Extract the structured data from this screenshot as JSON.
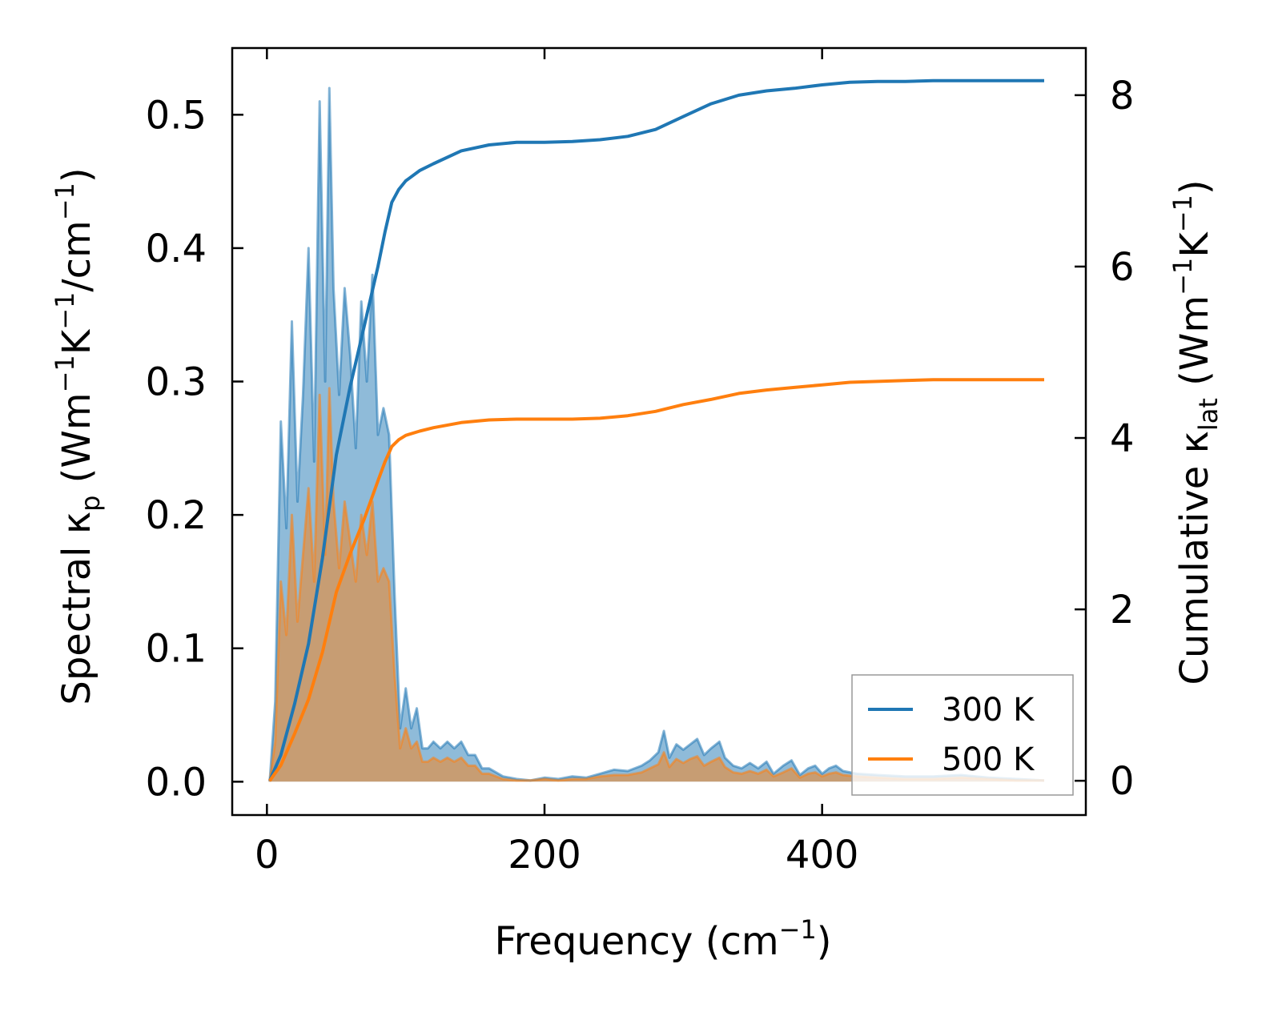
{
  "chart_data": {
    "type": "area+line (dual axis)",
    "xlabel": "Frequency (cm⁻¹)",
    "ylabel_left": "Spectral κₚ (Wm⁻¹K⁻¹/cm⁻¹)",
    "ylabel_right": "Cumulative κₗₐₜ (Wm⁻¹K⁻¹)",
    "xlim": [
      -25,
      590
    ],
    "ylim_left": [
      -0.025,
      0.55
    ],
    "ylim_right": [
      -0.4,
      8.55
    ],
    "x_ticks": [
      0,
      200,
      400
    ],
    "y_left_ticks": [
      0.0,
      0.1,
      0.2,
      0.3,
      0.4,
      0.5
    ],
    "y_right_ticks": [
      0,
      2,
      4,
      6,
      8
    ],
    "legend": {
      "position": "lower-right",
      "entries": [
        "300 K",
        "500 K"
      ]
    },
    "colors": {
      "300 K": "#1f77b4",
      "500 K": "#ff7f0e",
      "fill_300": "#1f77b4",
      "fill_500": "#ff7f0e"
    },
    "spectral": [
      {
        "name": "300 K",
        "points": [
          [
            2,
            0
          ],
          [
            6,
            0.06
          ],
          [
            10,
            0.27
          ],
          [
            14,
            0.19
          ],
          [
            18,
            0.345
          ],
          [
            22,
            0.21
          ],
          [
            26,
            0.29
          ],
          [
            30,
            0.4
          ],
          [
            34,
            0.24
          ],
          [
            38,
            0.51
          ],
          [
            42,
            0.3
          ],
          [
            45,
            0.52
          ],
          [
            48,
            0.37
          ],
          [
            52,
            0.29
          ],
          [
            56,
            0.37
          ],
          [
            60,
            0.32
          ],
          [
            64,
            0.25
          ],
          [
            68,
            0.36
          ],
          [
            72,
            0.3
          ],
          [
            76,
            0.38
          ],
          [
            80,
            0.26
          ],
          [
            84,
            0.28
          ],
          [
            88,
            0.26
          ],
          [
            92,
            0.14
          ],
          [
            96,
            0.04
          ],
          [
            100,
            0.07
          ],
          [
            104,
            0.04
          ],
          [
            108,
            0.055
          ],
          [
            112,
            0.025
          ],
          [
            116,
            0.025
          ],
          [
            120,
            0.03
          ],
          [
            125,
            0.025
          ],
          [
            130,
            0.03
          ],
          [
            135,
            0.025
          ],
          [
            140,
            0.03
          ],
          [
            145,
            0.02
          ],
          [
            150,
            0.02
          ],
          [
            155,
            0.01
          ],
          [
            160,
            0.01
          ],
          [
            170,
            0.004
          ],
          [
            180,
            0.002
          ],
          [
            190,
            0.001
          ],
          [
            200,
            0.003
          ],
          [
            210,
            0.002
          ],
          [
            220,
            0.004
          ],
          [
            230,
            0.003
          ],
          [
            240,
            0.006
          ],
          [
            250,
            0.009
          ],
          [
            260,
            0.008
          ],
          [
            270,
            0.012
          ],
          [
            276,
            0.016
          ],
          [
            282,
            0.022
          ],
          [
            286,
            0.038
          ],
          [
            290,
            0.018
          ],
          [
            295,
            0.028
          ],
          [
            300,
            0.024
          ],
          [
            305,
            0.028
          ],
          [
            310,
            0.032
          ],
          [
            315,
            0.02
          ],
          [
            320,
            0.025
          ],
          [
            326,
            0.03
          ],
          [
            330,
            0.018
          ],
          [
            336,
            0.012
          ],
          [
            342,
            0.01
          ],
          [
            348,
            0.014
          ],
          [
            354,
            0.01
          ],
          [
            360,
            0.015
          ],
          [
            365,
            0.006
          ],
          [
            372,
            0.012
          ],
          [
            378,
            0.016
          ],
          [
            384,
            0.005
          ],
          [
            390,
            0.01
          ],
          [
            395,
            0.012
          ],
          [
            400,
            0.006
          ],
          [
            405,
            0.01
          ],
          [
            410,
            0.012
          ],
          [
            415,
            0.008
          ],
          [
            425,
            0.006
          ],
          [
            440,
            0.005
          ],
          [
            460,
            0.004
          ],
          [
            480,
            0.004
          ],
          [
            500,
            0.005
          ],
          [
            520,
            0.003
          ],
          [
            540,
            0.002
          ],
          [
            560,
            0.001
          ]
        ]
      },
      {
        "name": "500 K",
        "points": [
          [
            2,
            0
          ],
          [
            6,
            0.03
          ],
          [
            10,
            0.15
          ],
          [
            14,
            0.11
          ],
          [
            18,
            0.2
          ],
          [
            22,
            0.12
          ],
          [
            26,
            0.17
          ],
          [
            30,
            0.22
          ],
          [
            34,
            0.15
          ],
          [
            38,
            0.29
          ],
          [
            42,
            0.17
          ],
          [
            45,
            0.295
          ],
          [
            48,
            0.21
          ],
          [
            52,
            0.16
          ],
          [
            56,
            0.21
          ],
          [
            60,
            0.18
          ],
          [
            64,
            0.15
          ],
          [
            68,
            0.2
          ],
          [
            72,
            0.17
          ],
          [
            76,
            0.21
          ],
          [
            80,
            0.15
          ],
          [
            84,
            0.16
          ],
          [
            88,
            0.15
          ],
          [
            92,
            0.08
          ],
          [
            96,
            0.025
          ],
          [
            100,
            0.04
          ],
          [
            104,
            0.025
          ],
          [
            108,
            0.03
          ],
          [
            112,
            0.015
          ],
          [
            116,
            0.015
          ],
          [
            120,
            0.018
          ],
          [
            125,
            0.015
          ],
          [
            130,
            0.018
          ],
          [
            135,
            0.015
          ],
          [
            140,
            0.018
          ],
          [
            145,
            0.012
          ],
          [
            150,
            0.012
          ],
          [
            155,
            0.006
          ],
          [
            160,
            0.006
          ],
          [
            170,
            0.002
          ],
          [
            180,
            0.001
          ],
          [
            190,
            0.001
          ],
          [
            200,
            0.002
          ],
          [
            210,
            0.001
          ],
          [
            220,
            0.002
          ],
          [
            230,
            0.002
          ],
          [
            240,
            0.004
          ],
          [
            250,
            0.005
          ],
          [
            260,
            0.005
          ],
          [
            270,
            0.007
          ],
          [
            276,
            0.01
          ],
          [
            282,
            0.013
          ],
          [
            286,
            0.022
          ],
          [
            290,
            0.011
          ],
          [
            295,
            0.017
          ],
          [
            300,
            0.014
          ],
          [
            305,
            0.017
          ],
          [
            310,
            0.019
          ],
          [
            315,
            0.012
          ],
          [
            320,
            0.015
          ],
          [
            326,
            0.018
          ],
          [
            330,
            0.011
          ],
          [
            336,
            0.007
          ],
          [
            342,
            0.006
          ],
          [
            348,
            0.008
          ],
          [
            354,
            0.006
          ],
          [
            360,
            0.009
          ],
          [
            365,
            0.004
          ],
          [
            372,
            0.007
          ],
          [
            378,
            0.01
          ],
          [
            384,
            0.003
          ],
          [
            390,
            0.006
          ],
          [
            395,
            0.007
          ],
          [
            400,
            0.004
          ],
          [
            405,
            0.006
          ],
          [
            410,
            0.007
          ],
          [
            415,
            0.005
          ],
          [
            425,
            0.004
          ],
          [
            440,
            0.003
          ],
          [
            460,
            0.002
          ],
          [
            480,
            0.002
          ],
          [
            500,
            0.003
          ],
          [
            520,
            0.002
          ],
          [
            540,
            0.001
          ],
          [
            560,
            0.001
          ]
        ]
      }
    ],
    "cumulative": [
      {
        "name": "300 K",
        "points": [
          [
            2,
            0
          ],
          [
            10,
            0.3
          ],
          [
            20,
            0.9
          ],
          [
            30,
            1.6
          ],
          [
            40,
            2.6
          ],
          [
            50,
            3.8
          ],
          [
            60,
            4.6
          ],
          [
            70,
            5.3
          ],
          [
            80,
            6.0
          ],
          [
            85,
            6.4
          ],
          [
            90,
            6.75
          ],
          [
            95,
            6.9
          ],
          [
            100,
            7.0
          ],
          [
            110,
            7.12
          ],
          [
            120,
            7.2
          ],
          [
            140,
            7.35
          ],
          [
            160,
            7.42
          ],
          [
            180,
            7.45
          ],
          [
            200,
            7.45
          ],
          [
            220,
            7.46
          ],
          [
            240,
            7.48
          ],
          [
            260,
            7.52
          ],
          [
            280,
            7.6
          ],
          [
            300,
            7.75
          ],
          [
            320,
            7.9
          ],
          [
            340,
            8.0
          ],
          [
            360,
            8.05
          ],
          [
            380,
            8.08
          ],
          [
            400,
            8.12
          ],
          [
            420,
            8.15
          ],
          [
            440,
            8.16
          ],
          [
            460,
            8.16
          ],
          [
            480,
            8.17
          ],
          [
            500,
            8.17
          ],
          [
            520,
            8.17
          ],
          [
            560,
            8.17
          ]
        ]
      },
      {
        "name": "500 K",
        "points": [
          [
            2,
            0
          ],
          [
            10,
            0.18
          ],
          [
            20,
            0.55
          ],
          [
            30,
            0.95
          ],
          [
            40,
            1.5
          ],
          [
            50,
            2.2
          ],
          [
            60,
            2.65
          ],
          [
            70,
            3.05
          ],
          [
            80,
            3.5
          ],
          [
            85,
            3.72
          ],
          [
            90,
            3.9
          ],
          [
            95,
            3.98
          ],
          [
            100,
            4.03
          ],
          [
            110,
            4.08
          ],
          [
            120,
            4.12
          ],
          [
            140,
            4.18
          ],
          [
            160,
            4.21
          ],
          [
            180,
            4.22
          ],
          [
            200,
            4.22
          ],
          [
            220,
            4.22
          ],
          [
            240,
            4.23
          ],
          [
            260,
            4.26
          ],
          [
            280,
            4.31
          ],
          [
            300,
            4.39
          ],
          [
            320,
            4.45
          ],
          [
            340,
            4.52
          ],
          [
            360,
            4.56
          ],
          [
            380,
            4.59
          ],
          [
            400,
            4.62
          ],
          [
            420,
            4.65
          ],
          [
            440,
            4.66
          ],
          [
            460,
            4.67
          ],
          [
            480,
            4.68
          ],
          [
            500,
            4.68
          ],
          [
            520,
            4.68
          ],
          [
            560,
            4.68
          ]
        ]
      }
    ]
  }
}
